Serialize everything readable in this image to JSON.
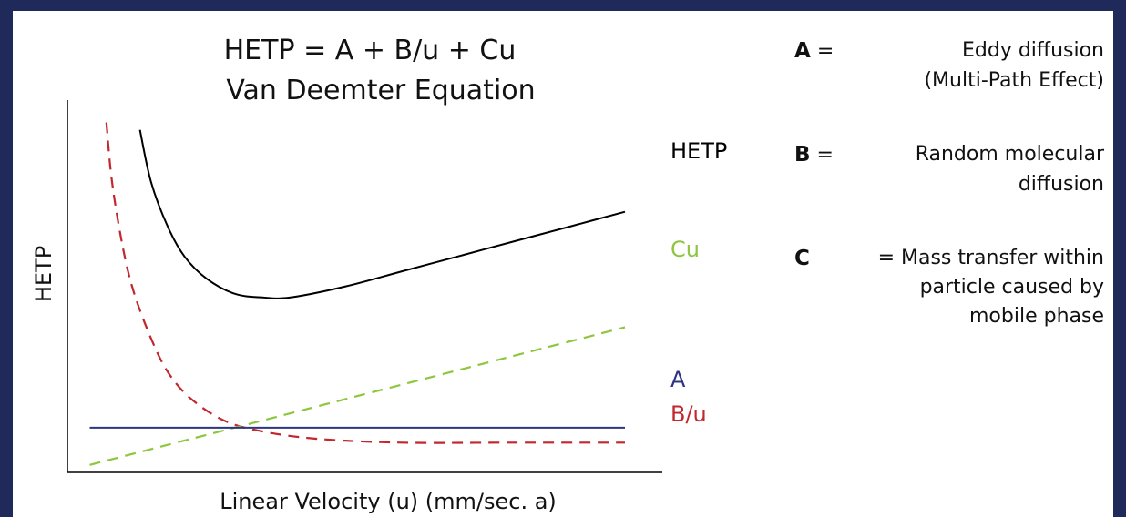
{
  "colors": {
    "frame": "#1f2a5a",
    "hetp": "#000000",
    "cu": "#8dc63f",
    "a": "#2e3580",
    "bu": "#c1272d"
  },
  "chart_data": {
    "type": "line",
    "title": "HETP = A + B/u + Cu",
    "subtitle": "Van Deemter Equation",
    "xlabel": "Linear Velocity (u) (mm/sec. a)",
    "ylabel": "HETP",
    "x_range": [
      0,
      1
    ],
    "y_range": [
      0,
      1
    ],
    "grid": false,
    "series": [
      {
        "name": "HETP",
        "style": "solid",
        "color": "#000000",
        "x": [
          0.13,
          0.15,
          0.18,
          0.21,
          0.25,
          0.3,
          0.35,
          0.4,
          0.5,
          0.6,
          0.7,
          0.8,
          0.9,
          1.0
        ],
        "y": [
          0.92,
          0.78,
          0.66,
          0.58,
          0.52,
          0.48,
          0.47,
          0.47,
          0.5,
          0.54,
          0.58,
          0.62,
          0.66,
          0.7
        ]
      },
      {
        "name": "Cu",
        "style": "dashed",
        "color": "#8dc63f",
        "x": [
          0.04,
          1.0
        ],
        "y": [
          0.02,
          0.39
        ]
      },
      {
        "name": "A",
        "style": "solid",
        "color": "#2e3580",
        "x": [
          0.04,
          1.0
        ],
        "y": [
          0.12,
          0.12
        ]
      },
      {
        "name": "B/u",
        "style": "dashed",
        "color": "#c1272d",
        "x": [
          0.07,
          0.08,
          0.1,
          0.12,
          0.15,
          0.18,
          0.22,
          0.28,
          0.35,
          0.45,
          0.6,
          0.8,
          1.0
        ],
        "y": [
          0.94,
          0.78,
          0.6,
          0.48,
          0.36,
          0.27,
          0.2,
          0.14,
          0.11,
          0.09,
          0.08,
          0.08,
          0.08
        ]
      }
    ]
  },
  "legend": {
    "a": {
      "key": "A",
      "eq": "=",
      "line1": "Eddy diffusion",
      "line2": "(Multi-Path Effect)"
    },
    "b": {
      "key": "B",
      "eq": "=",
      "line1": "Random molecular",
      "line2": "diffusion"
    },
    "c": {
      "key": "C",
      "eq": "= Mass transfer within",
      "line2": "particle caused by",
      "line3": "mobile phase"
    }
  }
}
